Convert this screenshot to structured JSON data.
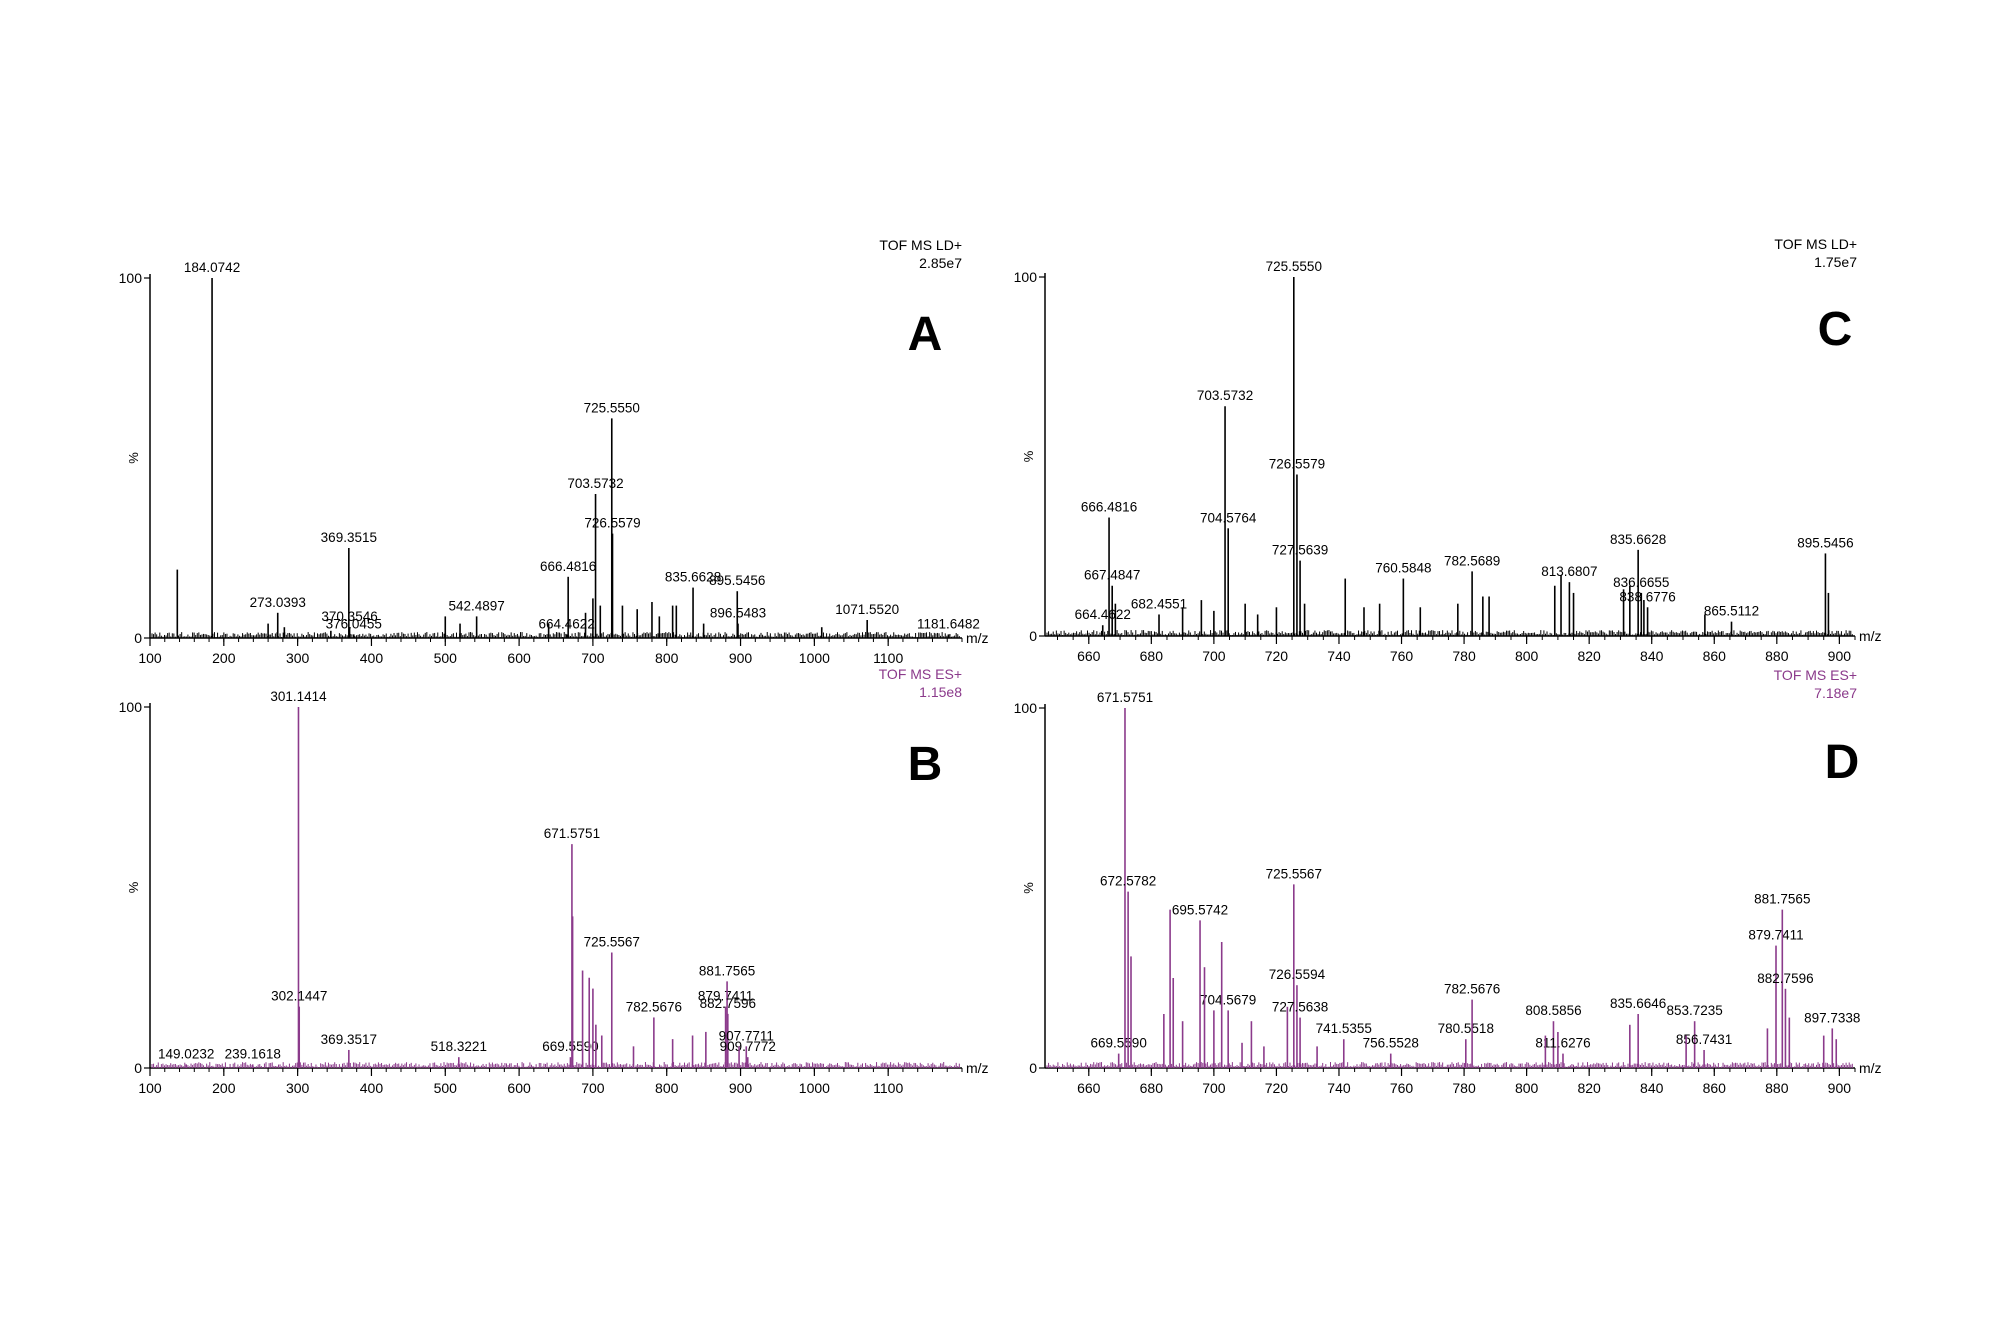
{
  "chart_data": [
    {
      "type": "bar",
      "panel_label": "A",
      "instrument": "TOF MS LD+",
      "intensity": "2.85e7",
      "color": "#000000",
      "x_unit": "m/z",
      "y_label": "%",
      "xlim": [
        100,
        1200
      ],
      "ylim": [
        0,
        100
      ],
      "x_ticks": [
        100,
        200,
        300,
        400,
        500,
        600,
        700,
        800,
        900,
        1000,
        1100
      ],
      "y_ticks": [
        0,
        100
      ],
      "peaks": [
        {
          "mz": 184.0742,
          "intensity": 100,
          "label": "184.0742"
        },
        {
          "mz": 273.0393,
          "intensity": 7,
          "label": "273.0393"
        },
        {
          "mz": 369.3515,
          "intensity": 25,
          "label": "369.3515"
        },
        {
          "mz": 370.3546,
          "intensity": 3,
          "label": "370.3546"
        },
        {
          "mz": 376.0455,
          "intensity": 1,
          "label": "376.0455"
        },
        {
          "mz": 542.4897,
          "intensity": 6,
          "label": "542.4897"
        },
        {
          "mz": 664.4622,
          "intensity": 1,
          "label": "664.4622"
        },
        {
          "mz": 666.4816,
          "intensity": 17,
          "label": "666.4816"
        },
        {
          "mz": 703.5732,
          "intensity": 40,
          "label": "703.5732"
        },
        {
          "mz": 725.555,
          "intensity": 61,
          "label": "725.5550"
        },
        {
          "mz": 726.5579,
          "intensity": 29,
          "label": "726.5579"
        },
        {
          "mz": 835.6628,
          "intensity": 14,
          "label": "835.6628"
        },
        {
          "mz": 895.5456,
          "intensity": 13,
          "label": "895.5456"
        },
        {
          "mz": 896.5483,
          "intensity": 4,
          "label": "896.5483"
        },
        {
          "mz": 1071.552,
          "intensity": 5,
          "label": "1071.5520"
        },
        {
          "mz": 1181.6482,
          "intensity": 1,
          "label": "1181.6482"
        },
        {
          "mz": 137,
          "intensity": 19
        },
        {
          "mz": 260,
          "intensity": 4
        },
        {
          "mz": 282,
          "intensity": 3
        },
        {
          "mz": 345,
          "intensity": 2
        },
        {
          "mz": 500,
          "intensity": 6
        },
        {
          "mz": 520,
          "intensity": 4
        },
        {
          "mz": 640,
          "intensity": 4
        },
        {
          "mz": 690,
          "intensity": 7
        },
        {
          "mz": 700,
          "intensity": 11
        },
        {
          "mz": 710,
          "intensity": 9
        },
        {
          "mz": 740,
          "intensity": 9
        },
        {
          "mz": 760,
          "intensity": 8
        },
        {
          "mz": 780,
          "intensity": 10
        },
        {
          "mz": 790,
          "intensity": 6
        },
        {
          "mz": 808,
          "intensity": 9
        },
        {
          "mz": 813,
          "intensity": 9
        },
        {
          "mz": 850,
          "intensity": 4
        },
        {
          "mz": 1010,
          "intensity": 3
        }
      ]
    },
    {
      "type": "bar",
      "panel_label": "B",
      "instrument": "TOF MS ES+",
      "intensity": "1.15e8",
      "color": "#8b3a8b",
      "x_unit": "m/z",
      "y_label": "%",
      "xlim": [
        100,
        1200
      ],
      "ylim": [
        0,
        100
      ],
      "x_ticks": [
        100,
        200,
        300,
        400,
        500,
        600,
        700,
        800,
        900,
        1000,
        1100
      ],
      "y_ticks": [
        0,
        100
      ],
      "peaks": [
        {
          "mz": 149.0232,
          "intensity": 1,
          "label": "149.0232"
        },
        {
          "mz": 239.1618,
          "intensity": 1,
          "label": "239.1618"
        },
        {
          "mz": 301.1414,
          "intensity": 100,
          "label": "301.1414"
        },
        {
          "mz": 302.1447,
          "intensity": 17,
          "label": "302.1447"
        },
        {
          "mz": 369.3517,
          "intensity": 5,
          "label": "369.3517"
        },
        {
          "mz": 518.3221,
          "intensity": 3,
          "label": "518.3221"
        },
        {
          "mz": 669.559,
          "intensity": 3,
          "label": "669.5590"
        },
        {
          "mz": 671.5751,
          "intensity": 62,
          "label": "671.5751"
        },
        {
          "mz": 725.5567,
          "intensity": 32,
          "label": "725.5567"
        },
        {
          "mz": 782.5676,
          "intensity": 14,
          "label": "782.5676"
        },
        {
          "mz": 879.7411,
          "intensity": 17,
          "label": "879.7411"
        },
        {
          "mz": 881.7565,
          "intensity": 24,
          "label": "881.7565"
        },
        {
          "mz": 882.7596,
          "intensity": 15,
          "label": "882.7596"
        },
        {
          "mz": 907.7711,
          "intensity": 6,
          "label": "907.7711"
        },
        {
          "mz": 909.7772,
          "intensity": 3,
          "label": "909.7772"
        },
        {
          "mz": 672.5,
          "intensity": 42
        },
        {
          "mz": 686,
          "intensity": 27
        },
        {
          "mz": 695,
          "intensity": 25
        },
        {
          "mz": 700,
          "intensity": 22
        },
        {
          "mz": 704,
          "intensity": 12
        },
        {
          "mz": 712,
          "intensity": 9
        },
        {
          "mz": 755,
          "intensity": 6
        },
        {
          "mz": 808,
          "intensity": 8
        },
        {
          "mz": 835,
          "intensity": 9
        },
        {
          "mz": 853,
          "intensity": 10
        },
        {
          "mz": 898,
          "intensity": 6
        }
      ]
    },
    {
      "type": "bar",
      "panel_label": "C",
      "instrument": "TOF MS LD+",
      "intensity": "1.75e7",
      "color": "#000000",
      "x_unit": "m/z",
      "y_label": "%",
      "xlim": [
        646,
        905
      ],
      "ylim": [
        0,
        100
      ],
      "x_ticks": [
        660,
        680,
        700,
        720,
        740,
        760,
        780,
        800,
        820,
        840,
        860,
        880,
        900
      ],
      "y_ticks": [
        0,
        100
      ],
      "peaks": [
        {
          "mz": 664.4622,
          "intensity": 3,
          "label": "664.4622"
        },
        {
          "mz": 666.4816,
          "intensity": 33,
          "label": "666.4816"
        },
        {
          "mz": 667.4847,
          "intensity": 14,
          "label": "667.4847"
        },
        {
          "mz": 682.4551,
          "intensity": 6,
          "label": "682.4551"
        },
        {
          "mz": 703.5732,
          "intensity": 64,
          "label": "703.5732"
        },
        {
          "mz": 704.5764,
          "intensity": 30,
          "label": "704.5764"
        },
        {
          "mz": 725.555,
          "intensity": 100,
          "label": "725.5550"
        },
        {
          "mz": 726.5579,
          "intensity": 45,
          "label": "726.5579"
        },
        {
          "mz": 727.5639,
          "intensity": 21,
          "label": "727.5639"
        },
        {
          "mz": 760.5848,
          "intensity": 16,
          "label": "760.5848"
        },
        {
          "mz": 782.5689,
          "intensity": 18,
          "label": "782.5689"
        },
        {
          "mz": 813.6807,
          "intensity": 15,
          "label": "813.6807"
        },
        {
          "mz": 835.6628,
          "intensity": 24,
          "label": "835.6628"
        },
        {
          "mz": 836.6655,
          "intensity": 12,
          "label": "836.6655"
        },
        {
          "mz": 838.6776,
          "intensity": 8,
          "label": "838.6776"
        },
        {
          "mz": 865.5112,
          "intensity": 4,
          "label": "865.5112"
        },
        {
          "mz": 895.5456,
          "intensity": 23,
          "label": "895.5456"
        },
        {
          "mz": 668.5,
          "intensity": 9
        },
        {
          "mz": 690,
          "intensity": 8
        },
        {
          "mz": 696,
          "intensity": 10
        },
        {
          "mz": 700,
          "intensity": 7
        },
        {
          "mz": 710,
          "intensity": 9
        },
        {
          "mz": 714,
          "intensity": 6
        },
        {
          "mz": 720,
          "intensity": 8
        },
        {
          "mz": 729,
          "intensity": 9
        },
        {
          "mz": 742,
          "intensity": 16
        },
        {
          "mz": 748,
          "intensity": 8
        },
        {
          "mz": 753,
          "intensity": 9
        },
        {
          "mz": 766,
          "intensity": 8
        },
        {
          "mz": 778,
          "intensity": 9
        },
        {
          "mz": 786,
          "intensity": 11
        },
        {
          "mz": 788,
          "intensity": 11
        },
        {
          "mz": 809,
          "intensity": 14
        },
        {
          "mz": 811,
          "intensity": 17
        },
        {
          "mz": 815,
          "intensity": 12
        },
        {
          "mz": 831,
          "intensity": 13
        },
        {
          "mz": 833,
          "intensity": 14
        },
        {
          "mz": 837.5,
          "intensity": 10
        },
        {
          "mz": 857,
          "intensity": 6
        },
        {
          "mz": 896.5,
          "intensity": 12
        }
      ]
    },
    {
      "type": "bar",
      "panel_label": "D",
      "instrument": "TOF MS ES+",
      "intensity": "7.18e7",
      "color": "#8b3a8b",
      "x_unit": "m/z",
      "y_label": "%",
      "xlim": [
        646,
        905
      ],
      "ylim": [
        0,
        100
      ],
      "x_ticks": [
        660,
        680,
        700,
        720,
        740,
        760,
        780,
        800,
        820,
        840,
        860,
        880,
        900
      ],
      "y_ticks": [
        0,
        100
      ],
      "peaks": [
        {
          "mz": 669.559,
          "intensity": 4,
          "label": "669.5590"
        },
        {
          "mz": 671.5751,
          "intensity": 100,
          "label": "671.5751"
        },
        {
          "mz": 672.5782,
          "intensity": 49,
          "label": "672.5782"
        },
        {
          "mz": 695.5742,
          "intensity": 41,
          "label": "695.5742"
        },
        {
          "mz": 704.5679,
          "intensity": 16,
          "label": "704.5679"
        },
        {
          "mz": 725.5567,
          "intensity": 51,
          "label": "725.5567"
        },
        {
          "mz": 726.5594,
          "intensity": 23,
          "label": "726.5594"
        },
        {
          "mz": 727.5638,
          "intensity": 14,
          "label": "727.5638"
        },
        {
          "mz": 741.5355,
          "intensity": 8,
          "label": "741.5355"
        },
        {
          "mz": 756.5528,
          "intensity": 4,
          "label": "756.5528"
        },
        {
          "mz": 780.5518,
          "intensity": 8,
          "label": "780.5518"
        },
        {
          "mz": 782.5676,
          "intensity": 19,
          "label": "782.5676"
        },
        {
          "mz": 808.5856,
          "intensity": 13,
          "label": "808.5856"
        },
        {
          "mz": 811.6276,
          "intensity": 4,
          "label": "811.6276"
        },
        {
          "mz": 835.6646,
          "intensity": 15,
          "label": "835.6646"
        },
        {
          "mz": 853.7235,
          "intensity": 13,
          "label": "853.7235"
        },
        {
          "mz": 856.7431,
          "intensity": 5,
          "label": "856.7431"
        },
        {
          "mz": 879.7411,
          "intensity": 34,
          "label": "879.7411"
        },
        {
          "mz": 881.7565,
          "intensity": 44,
          "label": "881.7565"
        },
        {
          "mz": 882.7596,
          "intensity": 22,
          "label": "882.7596"
        },
        {
          "mz": 897.7338,
          "intensity": 11,
          "label": "897.7338"
        },
        {
          "mz": 673.5,
          "intensity": 31
        },
        {
          "mz": 684,
          "intensity": 15
        },
        {
          "mz": 686,
          "intensity": 44
        },
        {
          "mz": 687,
          "intensity": 25
        },
        {
          "mz": 690,
          "intensity": 13
        },
        {
          "mz": 697,
          "intensity": 28
        },
        {
          "mz": 700,
          "intensity": 16
        },
        {
          "mz": 702.5,
          "intensity": 35
        },
        {
          "mz": 709,
          "intensity": 7
        },
        {
          "mz": 712,
          "intensity": 13
        },
        {
          "mz": 716,
          "intensity": 6
        },
        {
          "mz": 723.5,
          "intensity": 17
        },
        {
          "mz": 733,
          "intensity": 6
        },
        {
          "mz": 806,
          "intensity": 9
        },
        {
          "mz": 810,
          "intensity": 10
        },
        {
          "mz": 833,
          "intensity": 12
        },
        {
          "mz": 851,
          "intensity": 9
        },
        {
          "mz": 877,
          "intensity": 11
        },
        {
          "mz": 884,
          "intensity": 14
        },
        {
          "mz": 895,
          "intensity": 9
        },
        {
          "mz": 899,
          "intensity": 8
        }
      ]
    }
  ]
}
